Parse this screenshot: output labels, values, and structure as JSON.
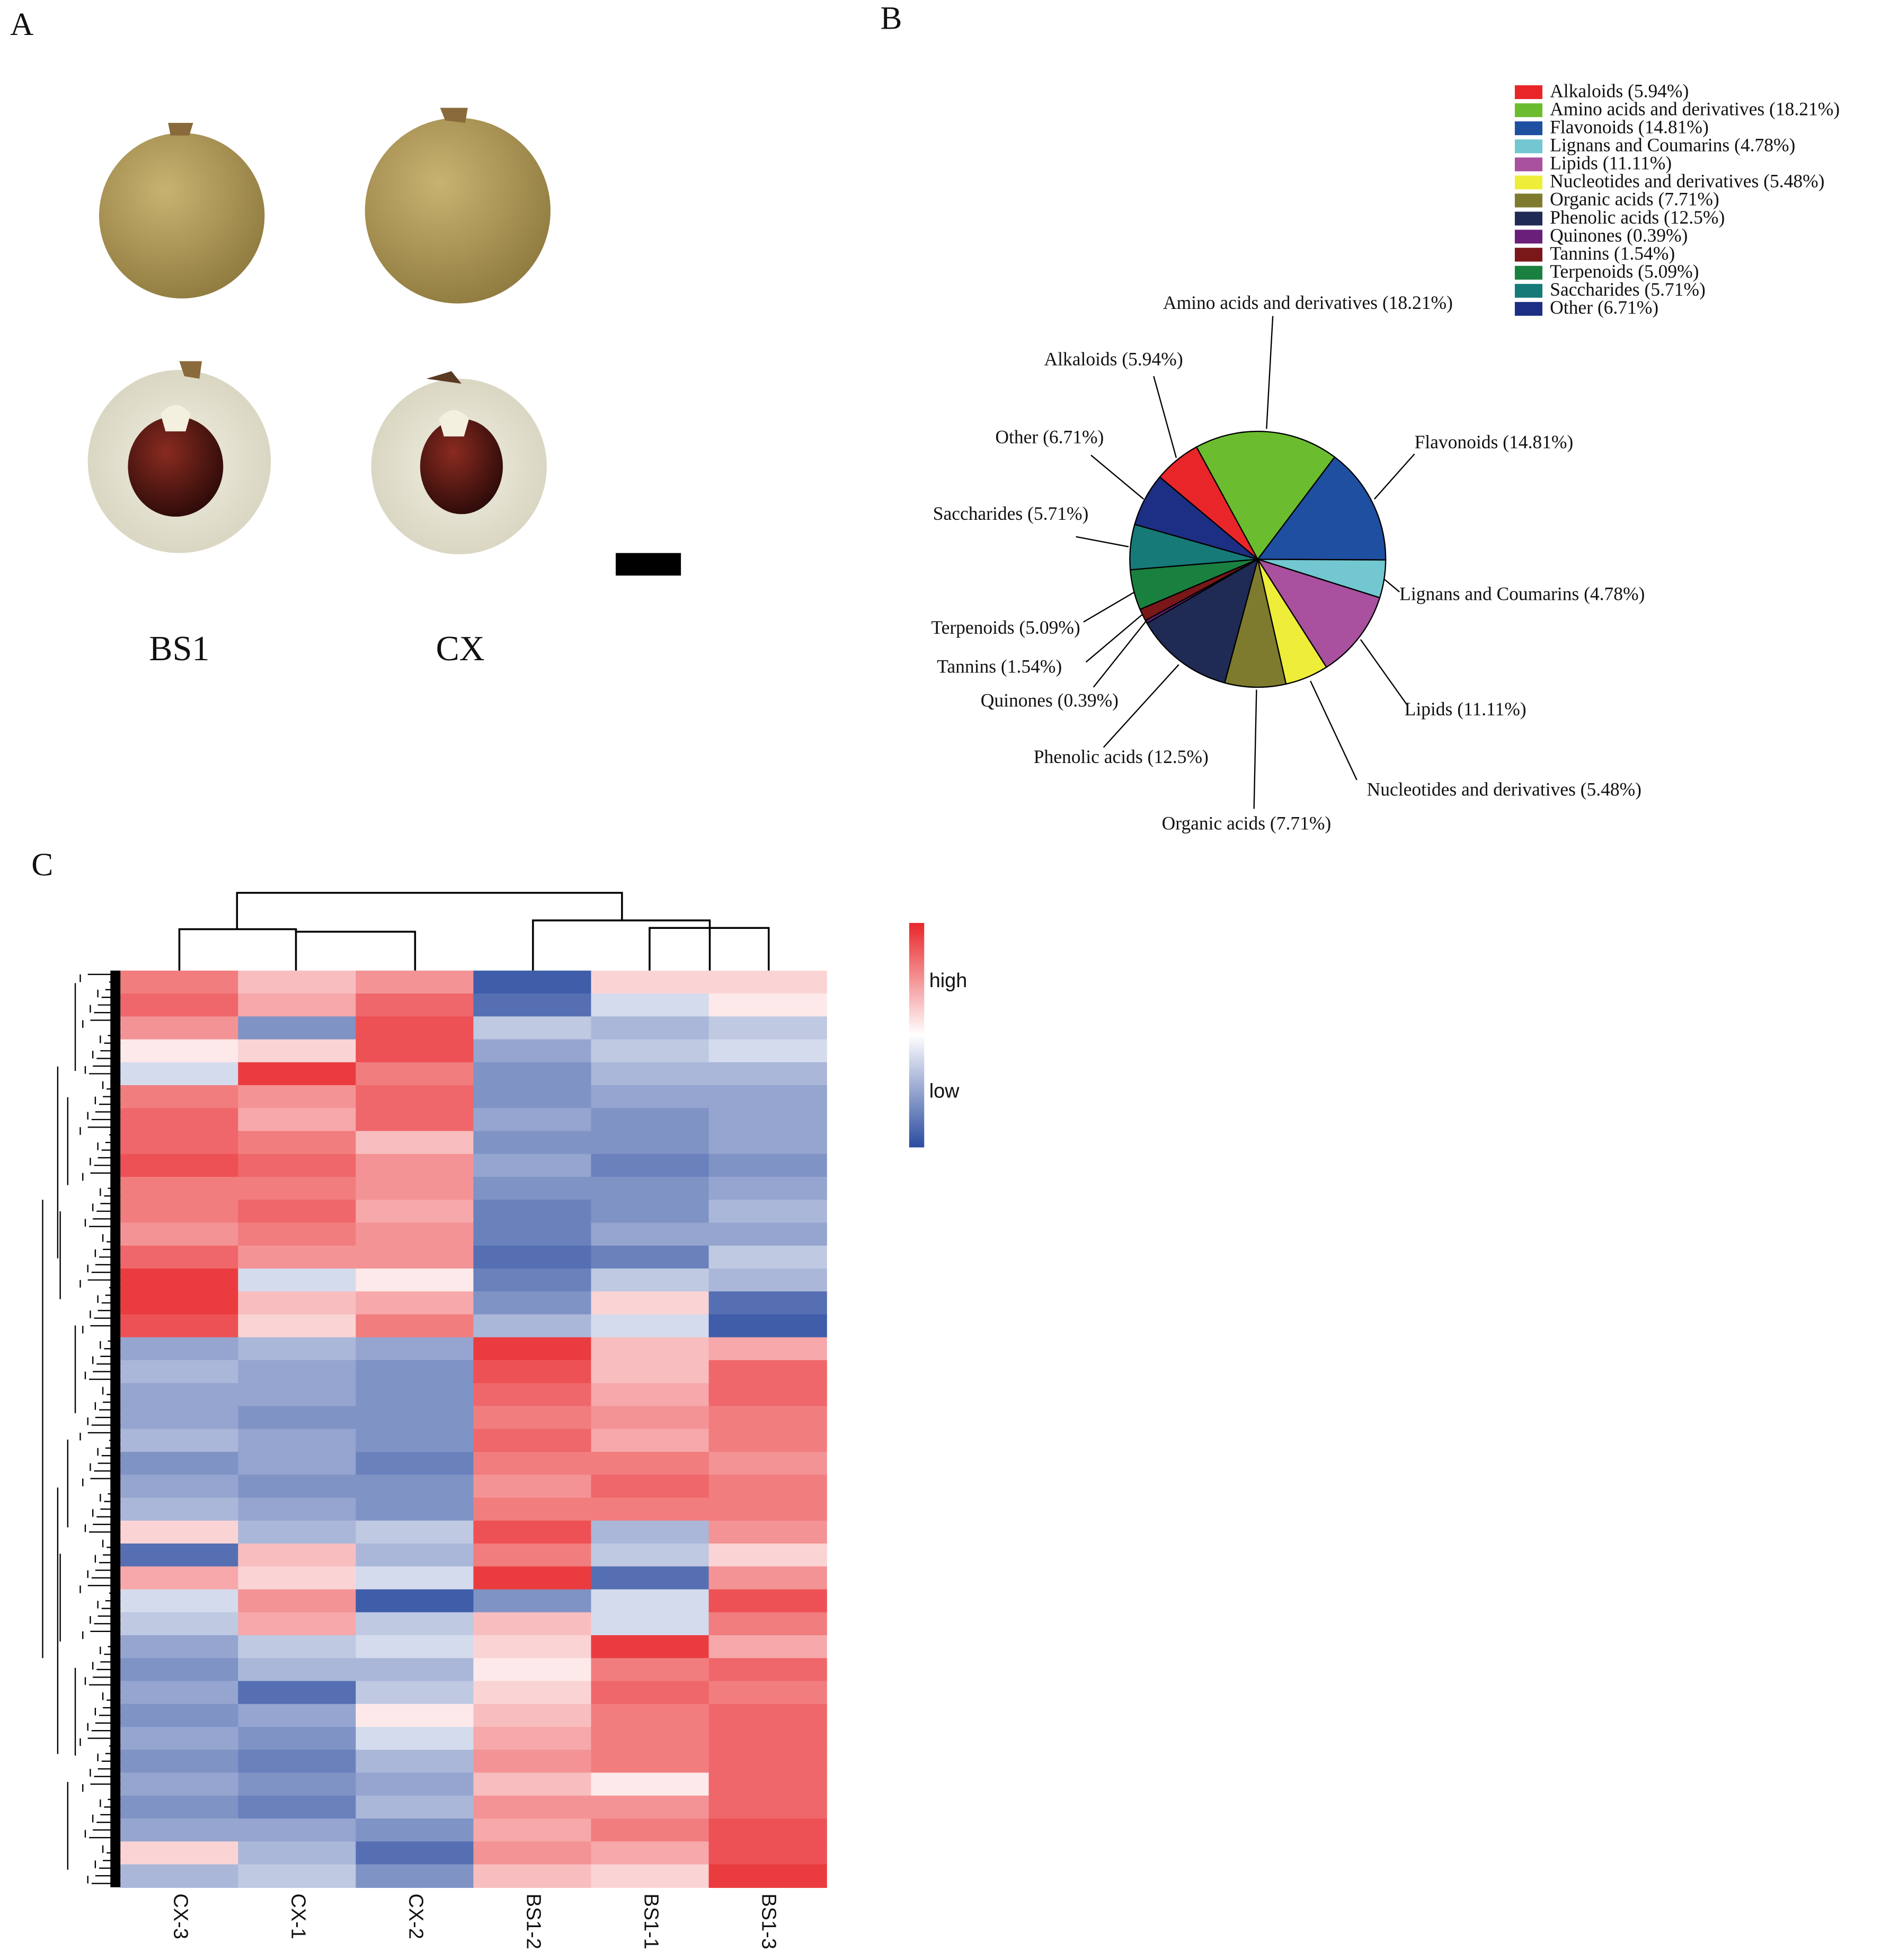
{
  "panel_labels": [
    "A",
    "B",
    "C"
  ],
  "photos": {
    "labels": [
      "BS1",
      "CX"
    ]
  },
  "chart_data": [
    {
      "type": "pie",
      "categories": [
        "Alkaloids (5.94%)",
        "Amino acids and derivatives (18.21%)",
        "Flavonoids (14.81%)",
        "Lignans and Coumarins (4.78%)",
        "Lipids (11.11%)",
        "Nucleotides and derivatives (5.48%)",
        "Organic acids (7.71%)",
        "Phenolic acids (12.5%)",
        "Quinones (0.39%)",
        "Tannins (1.54%)",
        "Terpenoids (5.09%)",
        "Saccharides (5.71%)",
        "Other (6.71%)"
      ],
      "values": [
        5.94,
        18.21,
        14.81,
        4.78,
        11.11,
        5.48,
        7.71,
        12.5,
        0.39,
        1.54,
        5.09,
        5.71,
        6.71
      ],
      "colors": [
        "#e8262a",
        "#6bbd2f",
        "#1e4fa0",
        "#72c7d0",
        "#a9509f",
        "#eded3a",
        "#7e7b2e",
        "#1f2a55",
        "#6a1f7a",
        "#7a1719",
        "#1a8040",
        "#167a78",
        "#1d2f84"
      ],
      "legend": "top-right"
    },
    {
      "type": "heatmap",
      "columns": [
        "CX-3",
        "CX-1",
        "CX-2",
        "BS1-2",
        "BS1-1",
        "BS1-3"
      ],
      "z": [
        [
          0.6,
          0.3,
          0.5,
          -0.9,
          0.2,
          0.2
        ],
        [
          0.7,
          0.4,
          0.7,
          -0.8,
          -0.2,
          0.1
        ],
        [
          0.5,
          -0.6,
          0.8,
          -0.3,
          -0.4,
          -0.3
        ],
        [
          0.1,
          0.2,
          0.8,
          -0.5,
          -0.3,
          -0.2
        ],
        [
          -0.2,
          0.9,
          0.6,
          -0.6,
          -0.4,
          -0.4
        ],
        [
          0.6,
          0.5,
          0.7,
          -0.6,
          -0.5,
          -0.5
        ],
        [
          0.7,
          0.4,
          0.7,
          -0.5,
          -0.6,
          -0.5
        ],
        [
          0.7,
          0.6,
          0.3,
          -0.6,
          -0.6,
          -0.5
        ],
        [
          0.8,
          0.7,
          0.5,
          -0.5,
          -0.7,
          -0.6
        ],
        [
          0.6,
          0.6,
          0.5,
          -0.6,
          -0.6,
          -0.5
        ],
        [
          0.6,
          0.7,
          0.4,
          -0.7,
          -0.6,
          -0.4
        ],
        [
          0.5,
          0.6,
          0.5,
          -0.7,
          -0.5,
          -0.5
        ],
        [
          0.7,
          0.5,
          0.5,
          -0.8,
          -0.7,
          -0.3
        ],
        [
          0.9,
          -0.2,
          0.1,
          -0.7,
          -0.3,
          -0.4
        ],
        [
          0.9,
          0.3,
          0.4,
          -0.6,
          0.2,
          -0.8
        ],
        [
          0.8,
          0.2,
          0.6,
          -0.4,
          -0.2,
          -0.9
        ],
        [
          -0.5,
          -0.4,
          -0.5,
          0.9,
          0.3,
          0.4
        ],
        [
          -0.4,
          -0.5,
          -0.6,
          0.8,
          0.3,
          0.7
        ],
        [
          -0.5,
          -0.5,
          -0.6,
          0.7,
          0.4,
          0.7
        ],
        [
          -0.5,
          -0.6,
          -0.6,
          0.6,
          0.5,
          0.6
        ],
        [
          -0.4,
          -0.5,
          -0.6,
          0.7,
          0.4,
          0.6
        ],
        [
          -0.6,
          -0.5,
          -0.7,
          0.6,
          0.6,
          0.5
        ],
        [
          -0.5,
          -0.6,
          -0.6,
          0.5,
          0.7,
          0.6
        ],
        [
          -0.4,
          -0.5,
          -0.6,
          0.6,
          0.6,
          0.6
        ],
        [
          0.2,
          -0.4,
          -0.3,
          0.8,
          -0.4,
          0.5
        ],
        [
          -0.8,
          0.3,
          -0.4,
          0.6,
          -0.3,
          0.2
        ],
        [
          0.4,
          0.2,
          -0.2,
          0.9,
          -0.8,
          0.5
        ],
        [
          -0.2,
          0.5,
          -0.9,
          -0.6,
          -0.2,
          0.8
        ],
        [
          -0.3,
          0.4,
          -0.3,
          0.3,
          -0.2,
          0.6
        ],
        [
          -0.5,
          -0.3,
          -0.2,
          0.2,
          0.9,
          0.4
        ],
        [
          -0.6,
          -0.4,
          -0.4,
          0.1,
          0.6,
          0.7
        ],
        [
          -0.5,
          -0.8,
          -0.3,
          0.2,
          0.7,
          0.6
        ],
        [
          -0.6,
          -0.5,
          0.1,
          0.3,
          0.6,
          0.7
        ],
        [
          -0.5,
          -0.6,
          -0.2,
          0.4,
          0.6,
          0.7
        ],
        [
          -0.6,
          -0.7,
          -0.4,
          0.5,
          0.6,
          0.7
        ],
        [
          -0.5,
          -0.6,
          -0.5,
          0.3,
          0.1,
          0.7
        ],
        [
          -0.6,
          -0.7,
          -0.4,
          0.5,
          0.5,
          0.7
        ],
        [
          -0.5,
          -0.5,
          -0.6,
          0.4,
          0.6,
          0.8
        ],
        [
          0.2,
          -0.4,
          -0.8,
          0.5,
          0.4,
          0.8
        ],
        [
          -0.4,
          -0.3,
          -0.6,
          0.3,
          0.2,
          0.9
        ]
      ],
      "colorbar_labels": [
        "high",
        "low"
      ],
      "high_color": "#e8262a",
      "low_color": "#2a4b9f"
    }
  ]
}
